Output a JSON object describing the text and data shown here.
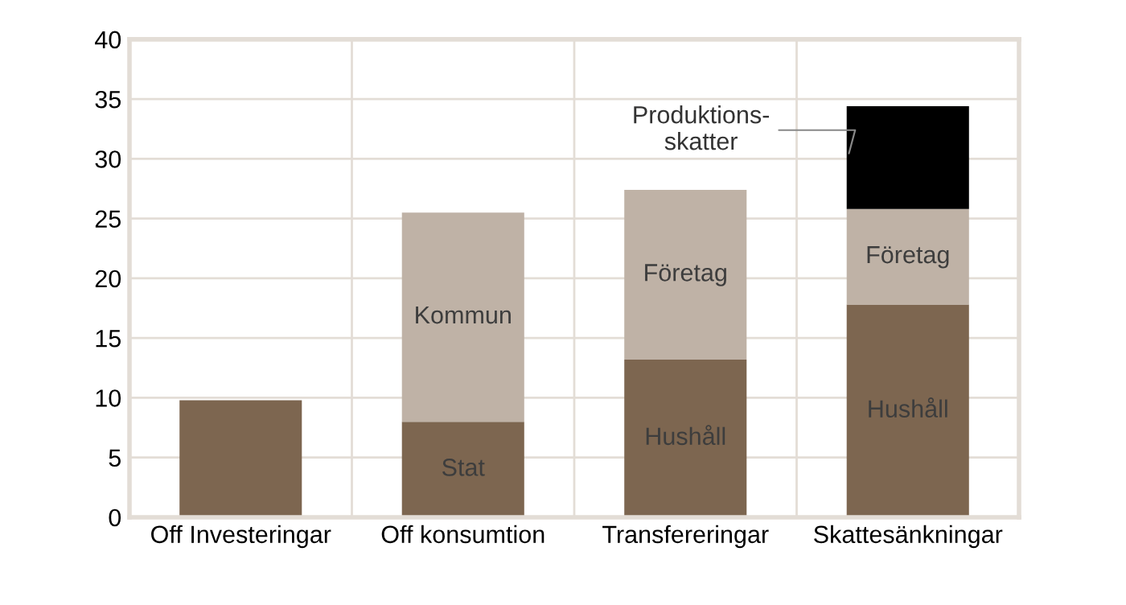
{
  "chart_data": {
    "type": "bar",
    "stacked": true,
    "categories": [
      "Off Investeringar",
      "Off konsumtion",
      "Transfereringar",
      "Skattesänkningar"
    ],
    "series": [
      {
        "color": "#7d6650",
        "values": [
          9.8,
          8.0,
          13.2,
          17.8
        ],
        "value_labels": [
          null,
          "Stat",
          "Hushåll",
          "Hushåll"
        ]
      },
      {
        "color": "#bfb2a6",
        "values": [
          null,
          17.5,
          14.2,
          8.0
        ],
        "value_labels": [
          null,
          "Kommun",
          "Företag",
          "Företag"
        ]
      },
      {
        "color": "#000000",
        "values": [
          null,
          null,
          null,
          8.6
        ],
        "value_labels": [
          null,
          null,
          null,
          "Produktions-\nskatter"
        ]
      }
    ],
    "ylim": [
      0,
      40
    ],
    "yticks": [
      0,
      5,
      10,
      15,
      20,
      25,
      30,
      35,
      40
    ],
    "grid": true,
    "legend": false
  }
}
